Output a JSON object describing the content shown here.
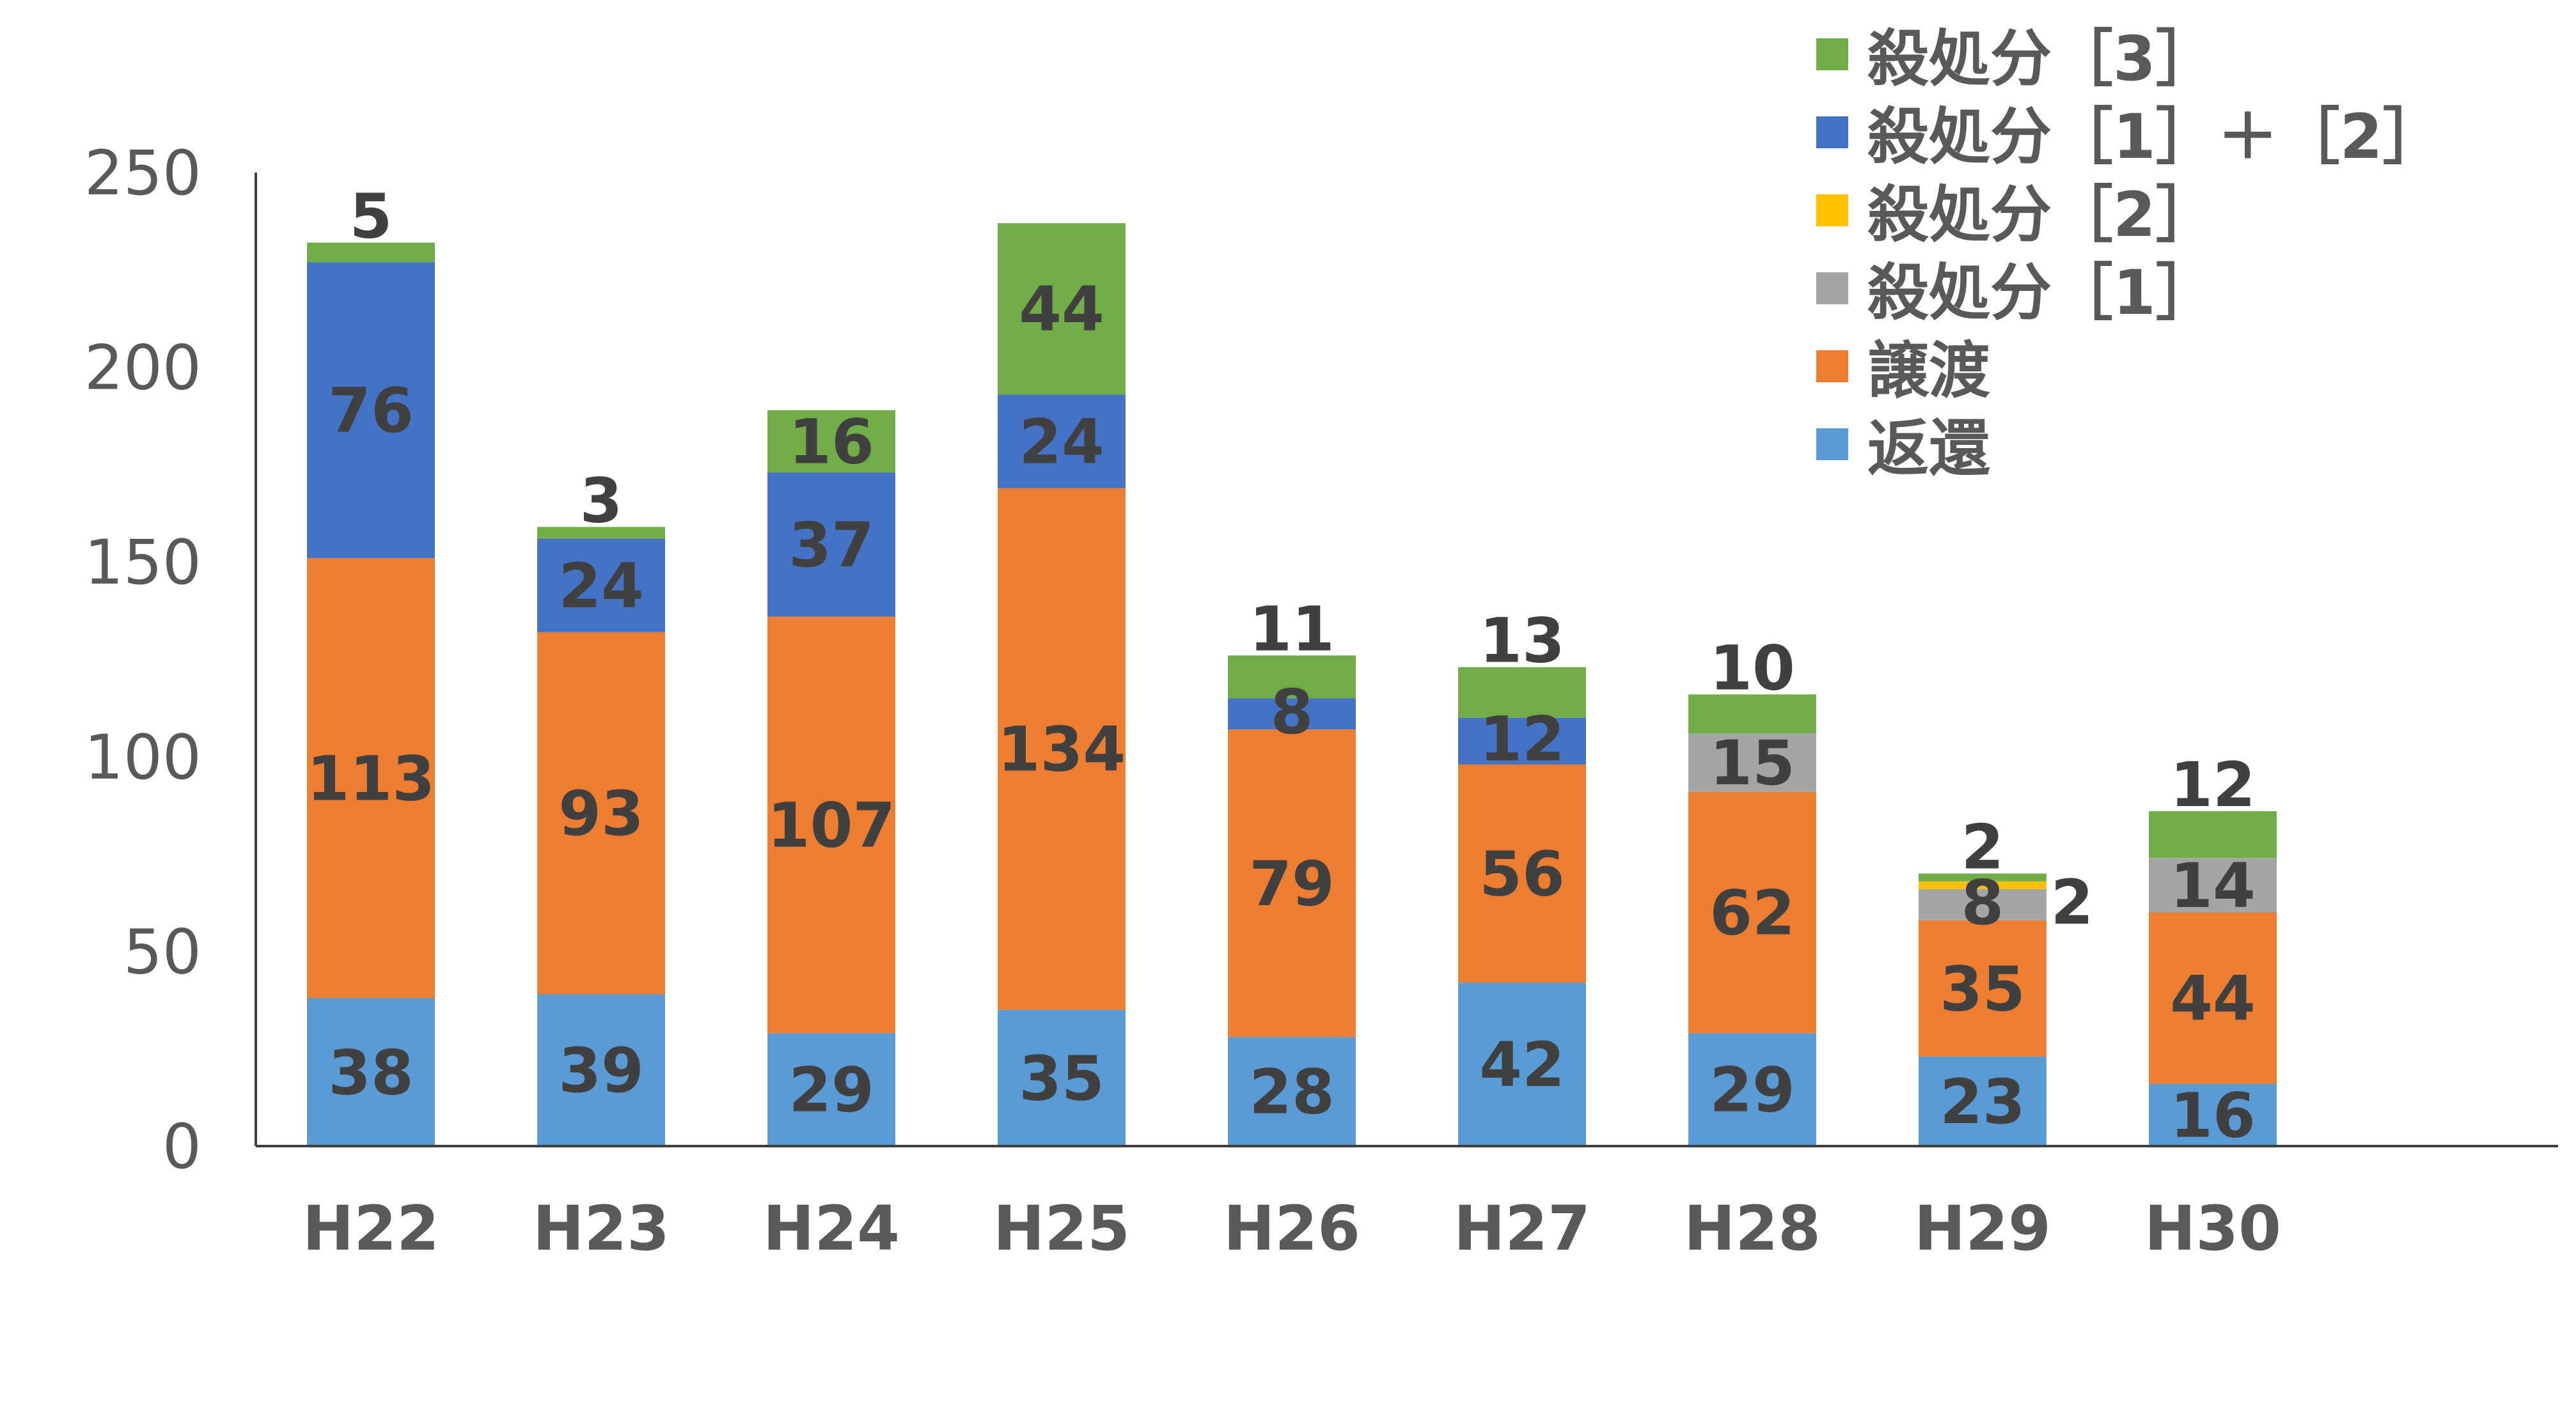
{
  "chart_data": {
    "type": "bar",
    "stacked": true,
    "categories": [
      "H22",
      "H23",
      "H24",
      "H25",
      "H26",
      "H27",
      "H28",
      "H29",
      "H30"
    ],
    "series": [
      {
        "name": "返還",
        "color": "#5B9BD5",
        "values": [
          38,
          39,
          29,
          35,
          28,
          42,
          29,
          23,
          16
        ]
      },
      {
        "name": "譲渡",
        "color": "#ED7D31",
        "values": [
          113,
          93,
          107,
          134,
          79,
          56,
          62,
          35,
          44
        ]
      },
      {
        "name": "殺処分［1］",
        "color": "#A5A5A5",
        "values": [
          0,
          0,
          0,
          0,
          0,
          0,
          15,
          8,
          14
        ]
      },
      {
        "name": "殺処分［2］",
        "color": "#FFC000",
        "values": [
          0,
          0,
          0,
          0,
          0,
          0,
          0,
          2,
          0
        ]
      },
      {
        "name": "殺処分［1］＋［2］",
        "color": "#4472C4",
        "values": [
          76,
          24,
          37,
          24,
          8,
          12,
          0,
          0,
          0
        ]
      },
      {
        "name": "殺処分［3］",
        "color": "#70AD47",
        "values": [
          5,
          3,
          16,
          44,
          11,
          13,
          10,
          2,
          12
        ]
      }
    ],
    "legend_order": [
      "殺処分［3］",
      "殺処分［1］＋［2］",
      "殺処分［2］",
      "殺処分［1］",
      "譲渡",
      "返還"
    ],
    "ylim": [
      0,
      250
    ],
    "yticks": [
      "0",
      "50",
      "100",
      "150",
      "200",
      "250"
    ],
    "title": "",
    "xlabel": "",
    "ylabel": "",
    "grid": false,
    "legend_position": "top-right"
  }
}
